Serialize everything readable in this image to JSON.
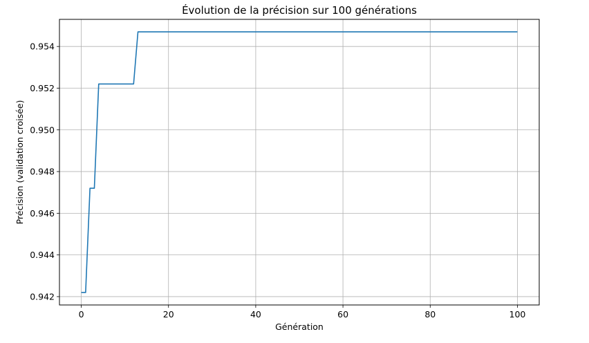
{
  "chart_data": {
    "type": "line",
    "title": "Évolution de la précision sur 100 générations",
    "xlabel": "Génération",
    "ylabel": "Précision (validation croisée)",
    "xlim": [
      -5,
      105
    ],
    "ylim": [
      0.9416,
      0.9553
    ],
    "xticks": [
      0,
      20,
      40,
      60,
      80,
      100
    ],
    "yticks": [
      0.942,
      0.944,
      0.946,
      0.948,
      0.95,
      0.952,
      0.954
    ],
    "ytick_labels": [
      "0.942",
      "0.944",
      "0.946",
      "0.948",
      "0.950",
      "0.952",
      "0.954"
    ],
    "grid": true,
    "series": [
      {
        "color": "#1f77b4",
        "x": [
          0,
          1,
          2,
          3,
          4,
          5,
          6,
          7,
          8,
          9,
          10,
          11,
          12,
          13,
          14,
          100
        ],
        "values": [
          0.9422,
          0.9422,
          0.9472,
          0.9472,
          0.9522,
          0.9522,
          0.9522,
          0.9522,
          0.9522,
          0.9522,
          0.9522,
          0.9522,
          0.9522,
          0.9547,
          0.9547,
          0.9547
        ]
      }
    ]
  }
}
